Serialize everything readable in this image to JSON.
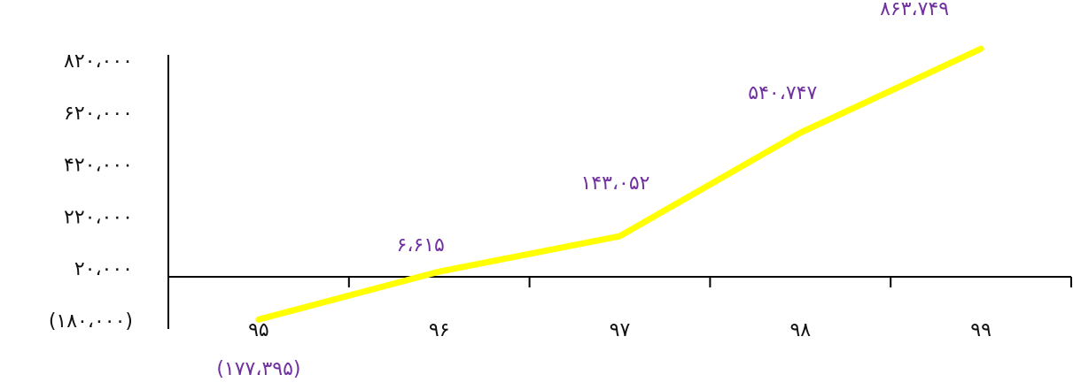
{
  "chart_data": {
    "type": "line",
    "categories": [
      "۹۵",
      "۹۶",
      "۹۷",
      "۹۸",
      "۹۹"
    ],
    "series": [
      {
        "values": [
          -177395,
          6615,
          143052,
          540747,
          863749
        ],
        "data_labels": [
          "(۱۷۷،۳۹۵)",
          "۶،۶۱۵",
          "۱۴۳،۰۵۲",
          "۵۴۰،۷۴۷",
          "۸۶۳،۷۴۹"
        ]
      }
    ],
    "yticks": [
      -180000,
      20000,
      220000,
      420000,
      620000,
      820000
    ],
    "ytick_labels": [
      "(۱۸۰،۰۰۰)",
      "۲۰،۰۰۰",
      "۲۲۰،۰۰۰",
      "۴۲۰،۰۰۰",
      "۶۲۰،۰۰۰",
      "۸۲۰،۰۰۰"
    ],
    "ylim": [
      -180000,
      820000
    ],
    "grid": false,
    "title": "",
    "xlabel": "",
    "ylabel": ""
  },
  "colors": {
    "line": "#ffff00",
    "data_label": "#7030a0",
    "axis": "#000000",
    "tick_text": "#111111"
  }
}
